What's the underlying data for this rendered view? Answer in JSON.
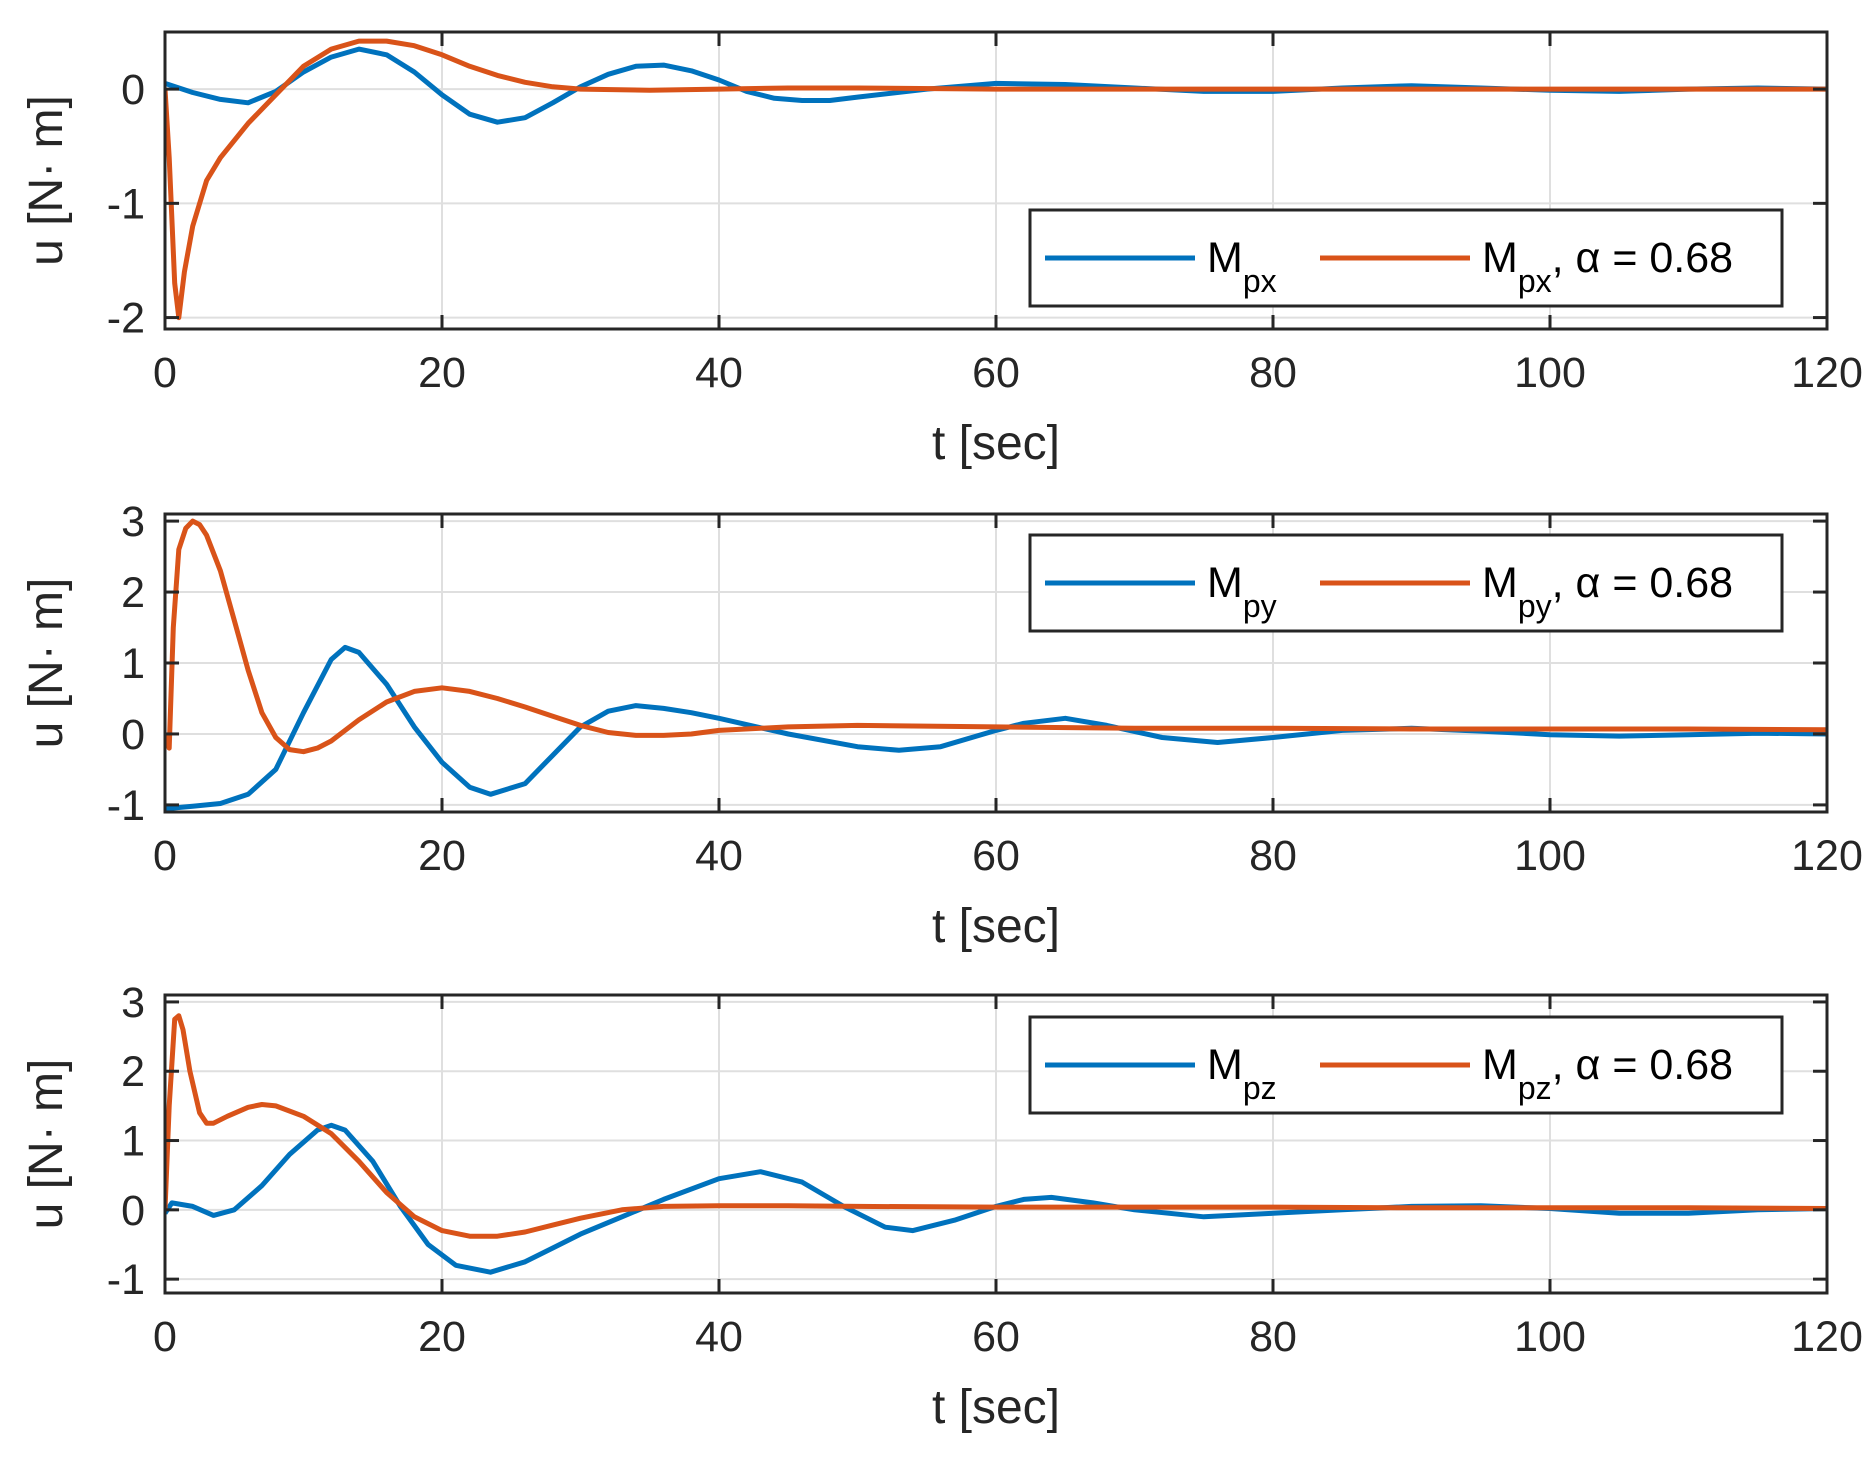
{
  "figure": {
    "colors": {
      "series1": "#0072BD",
      "series2": "#D95319",
      "grid": "#DFDFDF",
      "axis": "#262626"
    }
  },
  "chart_data": [
    {
      "type": "line",
      "xlabel": "t [sec]",
      "ylabel": "u [N· m]",
      "xlim": [
        0,
        120
      ],
      "ylim": [
        -2.1,
        0.5
      ],
      "xticks": [
        0,
        20,
        40,
        60,
        80,
        100,
        120
      ],
      "yticks": [
        -2,
        -1,
        0
      ],
      "grid": true,
      "legend_location": "bottom-right",
      "legend": [
        {
          "base": "M",
          "sub": "px",
          "suffix": ""
        },
        {
          "base": "M",
          "sub": "px",
          "suffix": ", α = 0.68"
        }
      ],
      "series": [
        {
          "name": "Mpx",
          "color": "#0072BD",
          "x": [
            0,
            2,
            4,
            6,
            8,
            10,
            12,
            14,
            16,
            18,
            20,
            22,
            24,
            26,
            28,
            30,
            32,
            34,
            36,
            38,
            40,
            42,
            44,
            46,
            48,
            50,
            55,
            60,
            65,
            70,
            75,
            80,
            85,
            90,
            95,
            100,
            105,
            110,
            115,
            120
          ],
          "y": [
            0.05,
            -0.03,
            -0.09,
            -0.12,
            -0.02,
            0.15,
            0.28,
            0.35,
            0.3,
            0.15,
            -0.05,
            -0.22,
            -0.29,
            -0.25,
            -0.12,
            0.02,
            0.13,
            0.2,
            0.21,
            0.16,
            0.08,
            -0.02,
            -0.08,
            -0.1,
            -0.1,
            -0.07,
            0.0,
            0.05,
            0.04,
            0.01,
            -0.02,
            -0.02,
            0.01,
            0.03,
            0.01,
            -0.01,
            -0.02,
            0.0,
            0.01,
            0.0
          ]
        },
        {
          "name": "Mpx, alpha = 0.68",
          "color": "#D95319",
          "x": [
            0,
            0.3,
            0.7,
            1.0,
            1.4,
            2,
            3,
            4,
            6,
            8,
            10,
            12,
            14,
            16,
            18,
            20,
            22,
            24,
            26,
            28,
            30,
            35,
            40,
            45,
            50,
            60,
            70,
            80,
            90,
            100,
            110,
            120
          ],
          "y": [
            0.0,
            -0.6,
            -1.7,
            -2.0,
            -1.6,
            -1.2,
            -0.8,
            -0.6,
            -0.3,
            -0.05,
            0.2,
            0.35,
            0.42,
            0.42,
            0.38,
            0.3,
            0.2,
            0.12,
            0.06,
            0.02,
            0.0,
            -0.01,
            0.0,
            0.01,
            0.01,
            0.0,
            0.0,
            0.0,
            0.0,
            0.0,
            0.0,
            0.0
          ]
        }
      ]
    },
    {
      "type": "line",
      "xlabel": "t [sec]",
      "ylabel": "u [N· m]",
      "xlim": [
        0,
        120
      ],
      "ylim": [
        -1.1,
        3.1
      ],
      "xticks": [
        0,
        20,
        40,
        60,
        80,
        100,
        120
      ],
      "yticks": [
        -1,
        0,
        1,
        2,
        3
      ],
      "grid": true,
      "legend_location": "top-right",
      "legend": [
        {
          "base": "M",
          "sub": "py",
          "suffix": ""
        },
        {
          "base": "M",
          "sub": "py",
          "suffix": ", α = 0.68"
        }
      ],
      "series": [
        {
          "name": "Mpy",
          "color": "#0072BD",
          "x": [
            0,
            0.2,
            2,
            4,
            6,
            8,
            10,
            12,
            13,
            14,
            16,
            18,
            20,
            22,
            23.5,
            26,
            28,
            30,
            32,
            34,
            36,
            38,
            40,
            45,
            50,
            53,
            56,
            60,
            62,
            65,
            68,
            72,
            76,
            80,
            85,
            90,
            95,
            100,
            105,
            110,
            115,
            120
          ],
          "y": [
            -1.0,
            -1.05,
            -1.02,
            -0.98,
            -0.85,
            -0.5,
            0.3,
            1.05,
            1.22,
            1.15,
            0.7,
            0.1,
            -0.4,
            -0.75,
            -0.85,
            -0.7,
            -0.3,
            0.1,
            0.32,
            0.4,
            0.36,
            0.3,
            0.22,
            0.0,
            -0.18,
            -0.23,
            -0.18,
            0.05,
            0.15,
            0.22,
            0.12,
            -0.05,
            -0.12,
            -0.05,
            0.05,
            0.08,
            0.04,
            -0.01,
            -0.03,
            -0.01,
            0.01,
            0.0
          ]
        },
        {
          "name": "Mpy, alpha = 0.68",
          "color": "#D95319",
          "x": [
            0,
            0.3,
            0.6,
            1.0,
            1.5,
            2,
            2.5,
            3,
            4,
            5,
            6,
            7,
            8,
            9,
            10,
            11,
            12,
            14,
            16,
            18,
            20,
            22,
            24,
            26,
            28,
            30,
            32,
            34,
            36,
            38,
            40,
            45,
            50,
            60,
            70,
            80,
            90,
            100,
            110,
            120
          ],
          "y": [
            0.0,
            -0.2,
            1.5,
            2.6,
            2.9,
            3.0,
            2.95,
            2.8,
            2.3,
            1.6,
            0.9,
            0.3,
            -0.05,
            -0.22,
            -0.25,
            -0.2,
            -0.1,
            0.2,
            0.45,
            0.6,
            0.65,
            0.6,
            0.5,
            0.38,
            0.25,
            0.12,
            0.02,
            -0.02,
            -0.02,
            0.0,
            0.05,
            0.1,
            0.12,
            0.1,
            0.08,
            0.08,
            0.07,
            0.07,
            0.07,
            0.06
          ]
        }
      ]
    },
    {
      "type": "line",
      "xlabel": "t [sec]",
      "ylabel": "u [N· m]",
      "xlim": [
        0,
        120
      ],
      "ylim": [
        -1.2,
        3.1
      ],
      "xticks": [
        0,
        20,
        40,
        60,
        80,
        100,
        120
      ],
      "yticks": [
        -1,
        0,
        1,
        2,
        3
      ],
      "grid": true,
      "legend_location": "top-right",
      "legend": [
        {
          "base": "M",
          "sub": "pz",
          "suffix": ""
        },
        {
          "base": "M",
          "sub": "pz",
          "suffix": ", α = 0.68"
        }
      ],
      "series": [
        {
          "name": "Mpz",
          "color": "#0072BD",
          "x": [
            0,
            0.5,
            2,
            3.5,
            5,
            7,
            9,
            11,
            12,
            13,
            15,
            17,
            19,
            21,
            23.5,
            26,
            28,
            30,
            33,
            36,
            40,
            43,
            46,
            49,
            52,
            54,
            57,
            60,
            62,
            64,
            67,
            70,
            75,
            80,
            85,
            90,
            95,
            100,
            105,
            110,
            115,
            120
          ],
          "y": [
            -0.05,
            0.1,
            0.05,
            -0.08,
            0.0,
            0.35,
            0.8,
            1.15,
            1.22,
            1.15,
            0.7,
            0.05,
            -0.5,
            -0.8,
            -0.9,
            -0.75,
            -0.55,
            -0.35,
            -0.1,
            0.15,
            0.45,
            0.55,
            0.4,
            0.05,
            -0.25,
            -0.3,
            -0.15,
            0.05,
            0.15,
            0.18,
            0.1,
            0.0,
            -0.1,
            -0.05,
            0.0,
            0.05,
            0.06,
            0.02,
            -0.05,
            -0.05,
            0.0,
            0.02
          ]
        },
        {
          "name": "Mpz, alpha = 0.68",
          "color": "#D95319",
          "x": [
            0,
            0.3,
            0.7,
            1.0,
            1.3,
            1.8,
            2.5,
            3,
            3.5,
            4.5,
            6,
            7,
            8,
            10,
            12,
            14,
            16,
            18,
            20,
            22,
            24,
            26,
            28,
            30,
            33,
            36,
            40,
            45,
            50,
            60,
            70,
            80,
            90,
            100,
            110,
            120
          ],
          "y": [
            0.0,
            1.5,
            2.75,
            2.8,
            2.6,
            2.0,
            1.4,
            1.25,
            1.25,
            1.35,
            1.48,
            1.52,
            1.5,
            1.35,
            1.1,
            0.7,
            0.25,
            -0.1,
            -0.3,
            -0.38,
            -0.38,
            -0.32,
            -0.22,
            -0.12,
            0.0,
            0.05,
            0.06,
            0.06,
            0.05,
            0.04,
            0.04,
            0.04,
            0.03,
            0.03,
            0.03,
            0.02
          ]
        }
      ]
    }
  ]
}
